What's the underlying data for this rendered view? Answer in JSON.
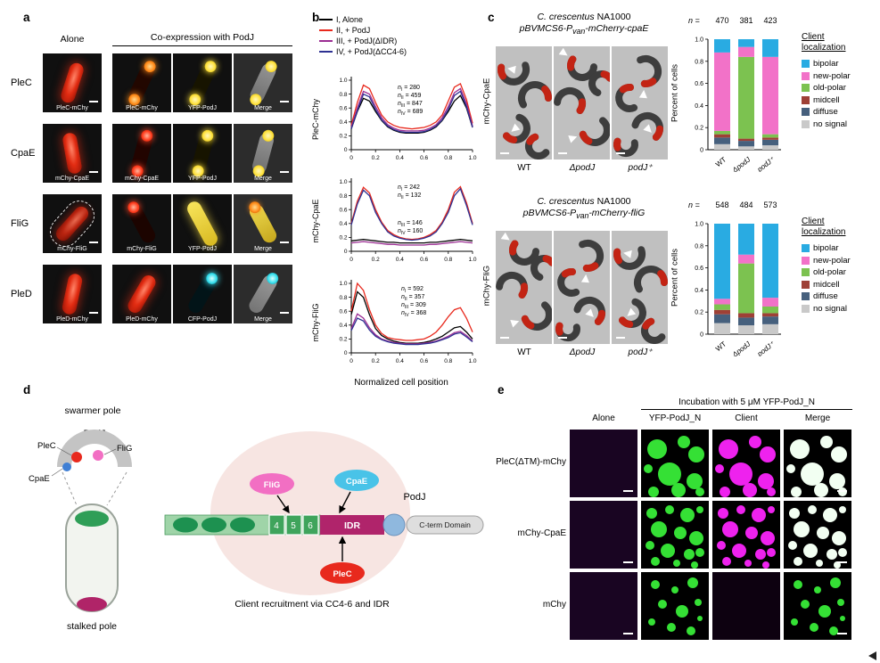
{
  "panel_labels": {
    "a": "a",
    "b": "b",
    "c": "c",
    "d": "d",
    "e": "e"
  },
  "panel_a": {
    "header_alone": "Alone",
    "header_coexpression": "Co-expression with PodJ",
    "rows": [
      {
        "name": "PleC",
        "tiles": [
          {
            "label": "PleC-mChy",
            "style": "rod-red"
          },
          {
            "label": "PleC-mChy",
            "style": "rod-orange-poles"
          },
          {
            "label": "YFP-PodJ",
            "style": "rod-yellow-poles"
          },
          {
            "label": "Merge",
            "style": "merge-yellow-poles"
          }
        ]
      },
      {
        "name": "CpaE",
        "tiles": [
          {
            "label": "mChy-CpaE",
            "style": "rod-red"
          },
          {
            "label": "mChy-CpaE",
            "style": "rod-red-poles"
          },
          {
            "label": "YFP-PodJ",
            "style": "rod-yellow-poles"
          },
          {
            "label": "Merge",
            "style": "merge-yellow-poles"
          }
        ]
      },
      {
        "name": "FliG",
        "tiles": [
          {
            "label": "mChy-FliG",
            "style": "rod-red-dashed"
          },
          {
            "label": "mChy-FliG",
            "style": "rod-red-focus"
          },
          {
            "label": "YFP-PodJ",
            "style": "rod-yellow-long"
          },
          {
            "label": "Merge",
            "style": "merge-yellow-orange"
          }
        ]
      },
      {
        "name": "PleD",
        "tiles": [
          {
            "label": "PleD-mChy",
            "style": "rod-red"
          },
          {
            "label": "PleD-mChy",
            "style": "rod-red"
          },
          {
            "label": "CFP-PodJ",
            "style": "rod-cyan-focus"
          },
          {
            "label": "Merge",
            "style": "merge-cyan-pole"
          }
        ]
      }
    ]
  },
  "panel_b": {
    "xlabel": "Normalized cell position",
    "legend": [
      {
        "label": "I, Alone",
        "color": "#000000"
      },
      {
        "label": "II, + PodJ",
        "color": "#e8291d"
      },
      {
        "label": "III, + PodJ(ΔIDR)",
        "color": "#9b2d93"
      },
      {
        "label": "IV, + PodJ(ΔCC4-6)",
        "color": "#2e3192"
      }
    ]
  },
  "chart_data": [
    {
      "type": "line",
      "title": "PleC-mChy",
      "xlabel": "Normalized cell position",
      "xlim": [
        0,
        1
      ],
      "ylim": [
        0,
        1
      ],
      "x": [
        0,
        0.05,
        0.1,
        0.15,
        0.2,
        0.25,
        0.3,
        0.35,
        0.4,
        0.45,
        0.5,
        0.55,
        0.6,
        0.65,
        0.7,
        0.75,
        0.8,
        0.85,
        0.9,
        0.95,
        1.0
      ],
      "series": [
        {
          "name": "I, Alone",
          "color": "#000000",
          "y": [
            0.3,
            0.55,
            0.74,
            0.7,
            0.55,
            0.42,
            0.33,
            0.28,
            0.25,
            0.24,
            0.24,
            0.24,
            0.25,
            0.28,
            0.33,
            0.42,
            0.55,
            0.7,
            0.78,
            0.6,
            0.32
          ]
        },
        {
          "name": "II, + PodJ",
          "color": "#e8291d",
          "y": [
            0.35,
            0.68,
            0.93,
            0.88,
            0.68,
            0.5,
            0.4,
            0.35,
            0.32,
            0.31,
            0.3,
            0.31,
            0.32,
            0.35,
            0.4,
            0.5,
            0.7,
            0.9,
            0.95,
            0.72,
            0.38
          ]
        },
        {
          "name": "III, + PodJ(ΔIDR)",
          "color": "#9b2d93",
          "y": [
            0.32,
            0.6,
            0.84,
            0.8,
            0.62,
            0.46,
            0.36,
            0.31,
            0.28,
            0.27,
            0.27,
            0.27,
            0.28,
            0.31,
            0.36,
            0.46,
            0.62,
            0.82,
            0.88,
            0.66,
            0.34
          ]
        },
        {
          "name": "IV, + PodJ(ΔCC4-6)",
          "color": "#2e3192",
          "y": [
            0.3,
            0.56,
            0.8,
            0.76,
            0.58,
            0.43,
            0.34,
            0.29,
            0.26,
            0.25,
            0.25,
            0.25,
            0.26,
            0.29,
            0.34,
            0.43,
            0.58,
            0.78,
            0.84,
            0.62,
            0.32
          ]
        }
      ],
      "counts": [
        {
          "roman": "I",
          "n": 280
        },
        {
          "roman": "II",
          "n": 459
        },
        {
          "roman": "III",
          "n": 847
        },
        {
          "roman": "IV",
          "n": 689
        }
      ]
    },
    {
      "type": "line",
      "title": "mChy-CpaE",
      "xlabel": "Normalized cell position",
      "xlim": [
        0,
        1
      ],
      "ylim": [
        0,
        1
      ],
      "x": [
        0,
        0.05,
        0.1,
        0.15,
        0.2,
        0.25,
        0.3,
        0.35,
        0.4,
        0.45,
        0.5,
        0.55,
        0.6,
        0.65,
        0.7,
        0.75,
        0.8,
        0.85,
        0.9,
        0.95,
        1.0
      ],
      "series": [
        {
          "name": "I, Alone",
          "color": "#000000",
          "y": [
            0.15,
            0.16,
            0.17,
            0.16,
            0.15,
            0.14,
            0.13,
            0.13,
            0.12,
            0.12,
            0.12,
            0.12,
            0.12,
            0.13,
            0.13,
            0.14,
            0.15,
            0.16,
            0.17,
            0.16,
            0.15
          ]
        },
        {
          "name": "II, + PodJ",
          "color": "#e8291d",
          "y": [
            0.4,
            0.72,
            0.92,
            0.84,
            0.6,
            0.42,
            0.3,
            0.24,
            0.2,
            0.18,
            0.17,
            0.18,
            0.2,
            0.24,
            0.3,
            0.42,
            0.6,
            0.85,
            0.93,
            0.7,
            0.4
          ]
        },
        {
          "name": "III, + PodJ(ΔIDR)",
          "color": "#9b2d93",
          "y": [
            0.12,
            0.13,
            0.14,
            0.13,
            0.12,
            0.11,
            0.1,
            0.1,
            0.09,
            0.09,
            0.09,
            0.09,
            0.09,
            0.1,
            0.1,
            0.11,
            0.12,
            0.13,
            0.14,
            0.13,
            0.12
          ]
        },
        {
          "name": "IV, + PodJ(ΔCC4-6)",
          "color": "#2e3192",
          "y": [
            0.38,
            0.68,
            0.88,
            0.8,
            0.56,
            0.4,
            0.28,
            0.22,
            0.19,
            0.17,
            0.16,
            0.17,
            0.19,
            0.22,
            0.28,
            0.4,
            0.56,
            0.8,
            0.9,
            0.66,
            0.38
          ]
        }
      ],
      "counts": [
        {
          "roman": "I",
          "n": 242
        },
        {
          "roman": "II",
          "n": 132
        },
        {
          "roman": "III",
          "n": 146
        },
        {
          "roman": "IV",
          "n": 160
        }
      ]
    },
    {
      "type": "line",
      "title": "mChy-FliG",
      "xlabel": "Normalized cell position",
      "xlim": [
        0,
        1
      ],
      "ylim": [
        0,
        1
      ],
      "x": [
        0,
        0.05,
        0.1,
        0.15,
        0.2,
        0.25,
        0.3,
        0.35,
        0.4,
        0.45,
        0.5,
        0.55,
        0.6,
        0.65,
        0.7,
        0.75,
        0.8,
        0.85,
        0.9,
        0.95,
        1.0
      ],
      "series": [
        {
          "name": "I, Alone",
          "color": "#000000",
          "y": [
            0.55,
            0.88,
            0.8,
            0.55,
            0.35,
            0.25,
            0.2,
            0.17,
            0.15,
            0.14,
            0.14,
            0.14,
            0.15,
            0.17,
            0.2,
            0.24,
            0.3,
            0.36,
            0.38,
            0.3,
            0.2
          ]
        },
        {
          "name": "II, + PodJ",
          "color": "#e8291d",
          "y": [
            0.6,
            1.0,
            0.9,
            0.62,
            0.4,
            0.28,
            0.22,
            0.2,
            0.19,
            0.18,
            0.18,
            0.19,
            0.2,
            0.24,
            0.3,
            0.4,
            0.52,
            0.62,
            0.65,
            0.5,
            0.3
          ]
        },
        {
          "name": "III, + PodJ(ΔIDR)",
          "color": "#9b2d93",
          "y": [
            0.35,
            0.56,
            0.5,
            0.36,
            0.26,
            0.2,
            0.17,
            0.15,
            0.14,
            0.13,
            0.13,
            0.13,
            0.14,
            0.15,
            0.17,
            0.2,
            0.24,
            0.29,
            0.31,
            0.25,
            0.17
          ]
        },
        {
          "name": "IV, + PodJ(ΔCC4-6)",
          "color": "#2e3192",
          "y": [
            0.32,
            0.5,
            0.46,
            0.33,
            0.24,
            0.19,
            0.16,
            0.14,
            0.13,
            0.12,
            0.12,
            0.12,
            0.13,
            0.14,
            0.16,
            0.19,
            0.22,
            0.27,
            0.29,
            0.23,
            0.16
          ]
        }
      ],
      "counts": [
        {
          "roman": "I",
          "n": 592
        },
        {
          "roman": "II",
          "n": 357
        },
        {
          "roman": "III",
          "n": 309
        },
        {
          "roman": "IV",
          "n": 368
        }
      ]
    },
    {
      "type": "stacked-bar",
      "title": "mCherry-CpaE client localization",
      "categories": [
        "WT",
        "ΔpodJ",
        "podJ⁺"
      ],
      "n": [
        470,
        381,
        423
      ],
      "ylabel": "Percent of cells",
      "ylim": [
        0,
        1
      ],
      "series": [
        {
          "name": "no signal",
          "color": "#c9c9c9",
          "values": [
            0.05,
            0.03,
            0.04
          ]
        },
        {
          "name": "diffuse",
          "color": "#46607d",
          "values": [
            0.06,
            0.05,
            0.05
          ]
        },
        {
          "name": "midcell",
          "color": "#9e4036",
          "values": [
            0.03,
            0.02,
            0.02
          ]
        },
        {
          "name": "old-polar",
          "color": "#7cc250",
          "values": [
            0.03,
            0.74,
            0.03
          ]
        },
        {
          "name": "new-polar",
          "color": "#f272c8",
          "values": [
            0.71,
            0.09,
            0.7
          ]
        },
        {
          "name": "bipolar",
          "color": "#29abe2",
          "values": [
            0.12,
            0.07,
            0.16
          ]
        }
      ]
    },
    {
      "type": "stacked-bar",
      "title": "mCherry-FliG client localization",
      "categories": [
        "WT",
        "ΔpodJ",
        "podJ⁺"
      ],
      "n": [
        548,
        484,
        573
      ],
      "ylabel": "Percent of cells",
      "ylim": [
        0,
        1
      ],
      "series": [
        {
          "name": "no signal",
          "color": "#c9c9c9",
          "values": [
            0.1,
            0.08,
            0.09
          ]
        },
        {
          "name": "diffuse",
          "color": "#46607d",
          "values": [
            0.08,
            0.07,
            0.07
          ]
        },
        {
          "name": "midcell",
          "color": "#9e4036",
          "values": [
            0.04,
            0.04,
            0.03
          ]
        },
        {
          "name": "old-polar",
          "color": "#7cc250",
          "values": [
            0.05,
            0.45,
            0.06
          ]
        },
        {
          "name": "new-polar",
          "color": "#f272c8",
          "values": [
            0.05,
            0.08,
            0.08
          ]
        },
        {
          "name": "bipolar",
          "color": "#29abe2",
          "values": [
            0.68,
            0.28,
            0.67
          ]
        }
      ]
    }
  ],
  "panel_c": {
    "top": {
      "title_species": "C. crescentus",
      "title_strain": " NA1000",
      "plasmid_prefix": "pBVMCS6-P",
      "plasmid_sub": "van",
      "plasmid_suffix": "-mCherry-cpaE",
      "n_prefix": "n = ",
      "n_values": [
        "470",
        "381",
        "423"
      ],
      "side_label": "mChy-CpaE",
      "strains": [
        "WT",
        "ΔpodJ",
        "podJ⁺"
      ],
      "ylabel": "Percent of cells"
    },
    "bottom": {
      "title_species": "C. crescentus",
      "title_strain": " NA1000",
      "plasmid_prefix": "pBVMCS6-P",
      "plasmid_sub": "van",
      "plasmid_suffix": "-mCherry-fliG",
      "n_prefix": "n = ",
      "n_values": [
        "548",
        "484",
        "573"
      ],
      "side_label": "mChy-FliG",
      "strains": [
        "WT",
        "ΔpodJ",
        "podJ⁺"
      ],
      "ylabel": "Percent of cells"
    },
    "legend_title_1": "Client",
    "legend_title_2": "localization",
    "legend_items": [
      {
        "label": "bipolar",
        "color": "#29abe2"
      },
      {
        "label": "new-polar",
        "color": "#f272c8"
      },
      {
        "label": "old-polar",
        "color": "#7cc250"
      },
      {
        "label": "midcell",
        "color": "#9e4036"
      },
      {
        "label": "diffuse",
        "color": "#46607d"
      },
      {
        "label": "no signal",
        "color": "#c9c9c9"
      }
    ]
  },
  "panel_d": {
    "swarmer_pole": "swarmer pole",
    "podj_top": "PodJ",
    "plec": "PleC",
    "flig": "FliG",
    "cpae": "CpaE",
    "stalked_pole": "stalked pole",
    "box4": "4",
    "box5": "5",
    "box6": "6",
    "idr": "IDR",
    "cterm": "C-term Domain",
    "podj_domain": "PodJ",
    "client_flig": "FliG",
    "client_cpae": "CpaE",
    "client_plec": "PleC",
    "caption": "Client recruitment via CC4-6 and IDR",
    "colors": {
      "plec": "#e8291d",
      "flig": "#f26fc3",
      "cpae": "#49c3e8",
      "idr": "#b0246b",
      "coiled_coil": "#1d9150"
    }
  },
  "panel_e": {
    "header": "Incubation with 5 μM YFP-PodJ_N",
    "cols": [
      "Alone",
      "YFP-PodJ_N",
      "Client",
      "Merge"
    ],
    "rows": [
      {
        "label": "PleC(ΔTM)-mChy",
        "tiles": [
          "dark",
          "green",
          "magenta",
          "white"
        ]
      },
      {
        "label": "mChy-CpaE",
        "tiles": [
          "dark",
          "green",
          "magenta",
          "white"
        ]
      },
      {
        "label": "mChy",
        "tiles": [
          "dark",
          "green",
          "dark2",
          "green"
        ]
      }
    ]
  }
}
